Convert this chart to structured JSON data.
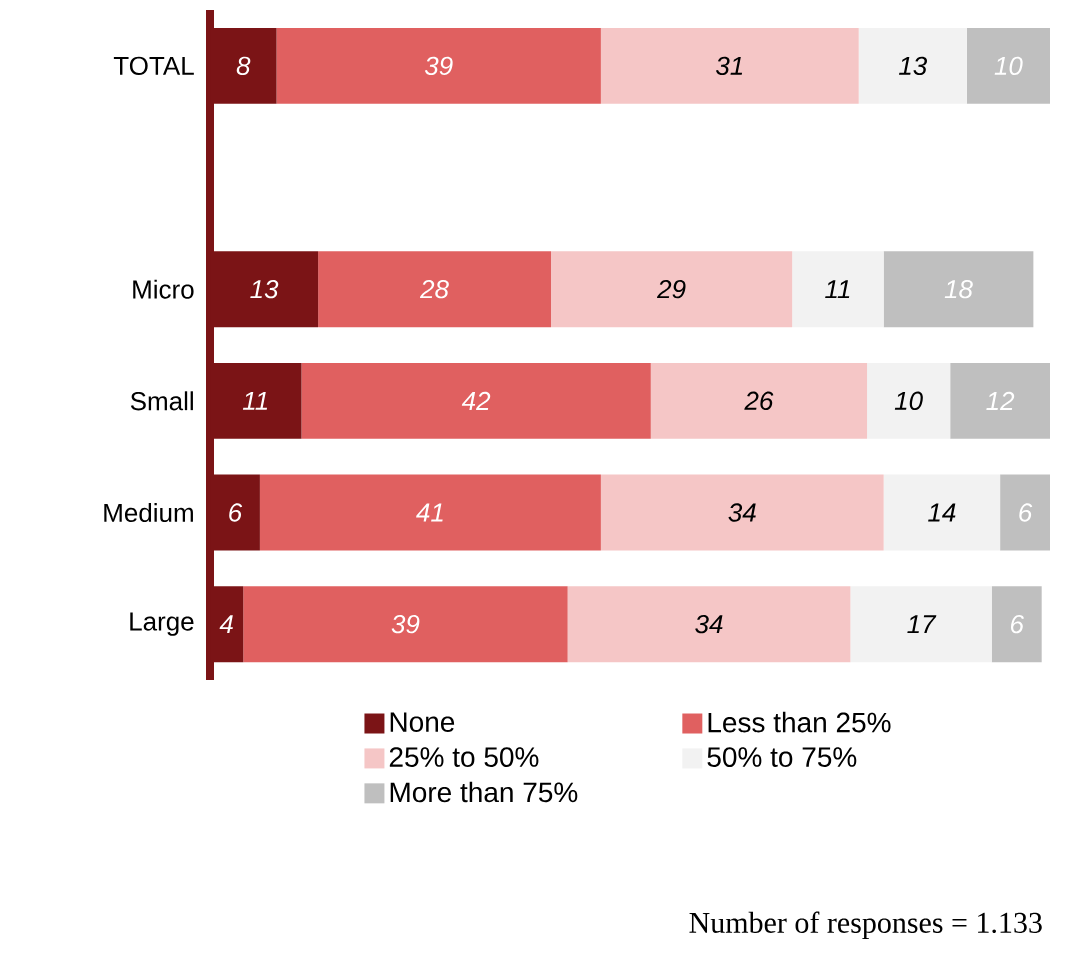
{
  "chart_data": {
    "type": "bar",
    "orientation": "horizontal",
    "stacked": true,
    "data_labels": true,
    "tick_labels": "y",
    "legend": "bottom",
    "grid": false,
    "categories": [
      "TOTAL",
      null,
      "Micro",
      "Small",
      "Medium",
      "Large"
    ],
    "series": [
      {
        "name": "None",
        "color": "#7b1416",
        "values": [
          8,
          null,
          13,
          11,
          6,
          4
        ]
      },
      {
        "name": "Less than 25%",
        "color": "#e06060",
        "values": [
          39,
          null,
          28,
          42,
          41,
          39
        ]
      },
      {
        "name": "25% to 50%",
        "color": "#f5c6c6",
        "values": [
          31,
          null,
          29,
          26,
          34,
          34
        ]
      },
      {
        "name": "50% to 75%",
        "color": "#f2f2f2",
        "values": [
          13,
          null,
          11,
          10,
          14,
          17
        ]
      },
      {
        "name": "More than 75%",
        "color": "#bfbfbf",
        "values": [
          10,
          null,
          18,
          12,
          6,
          6
        ]
      }
    ],
    "annotations": [
      "Number of responses = 1.133"
    ]
  }
}
